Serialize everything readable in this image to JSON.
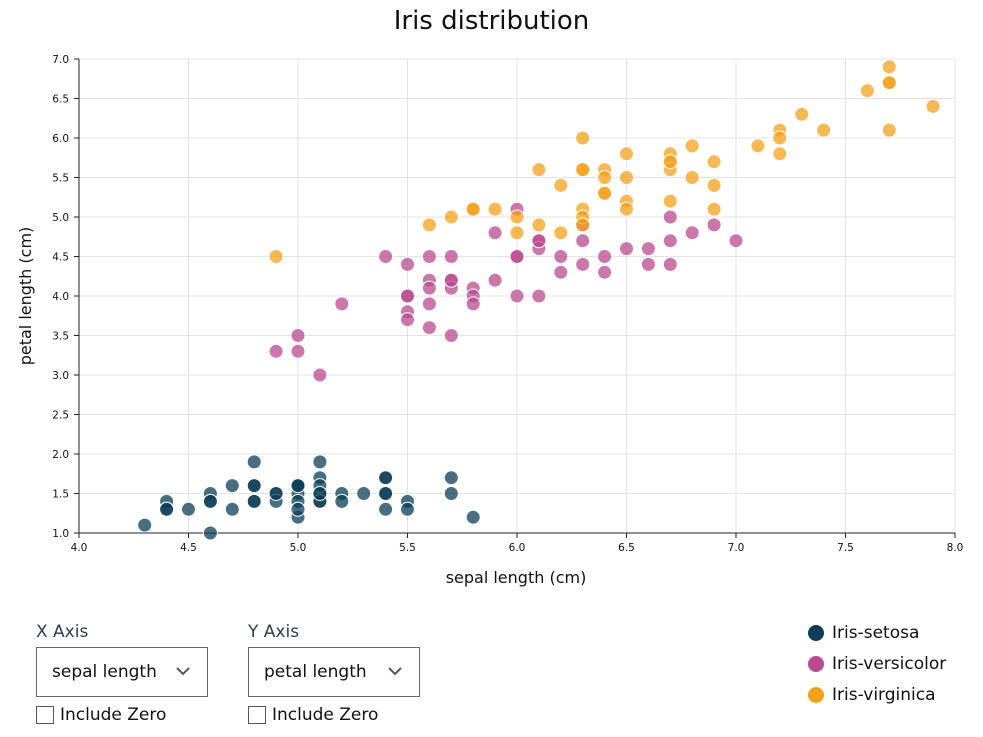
{
  "chart_data": {
    "type": "scatter",
    "title": "Iris distribution",
    "xlabel": "sepal length (cm)",
    "ylabel": "petal length (cm)",
    "xlim": [
      4.0,
      8.0
    ],
    "ylim": [
      1.0,
      7.0
    ],
    "x_ticks": [
      "4.0",
      "4.5",
      "5.0",
      "5.5",
      "6.0",
      "6.5",
      "7.0",
      "7.5",
      "8.0"
    ],
    "y_ticks": [
      "1.0",
      "1.5",
      "2.0",
      "2.5",
      "3.0",
      "3.5",
      "4.0",
      "4.5",
      "5.0",
      "5.5",
      "6.0",
      "6.5",
      "7.0"
    ],
    "grid": true,
    "legend_position": "bottom-right",
    "series": [
      {
        "name": "Iris-setosa",
        "color": "#0b3d57",
        "points": [
          [
            4.3,
            1.1
          ],
          [
            4.4,
            1.4
          ],
          [
            4.4,
            1.3
          ],
          [
            4.4,
            1.3
          ],
          [
            4.5,
            1.3
          ],
          [
            4.6,
            1.0
          ],
          [
            4.6,
            1.5
          ],
          [
            4.6,
            1.4
          ],
          [
            4.6,
            1.4
          ],
          [
            4.7,
            1.6
          ],
          [
            4.7,
            1.3
          ],
          [
            4.8,
            1.9
          ],
          [
            4.8,
            1.6
          ],
          [
            4.8,
            1.4
          ],
          [
            4.8,
            1.6
          ],
          [
            4.8,
            1.4
          ],
          [
            4.9,
            1.5
          ],
          [
            4.9,
            1.4
          ],
          [
            4.9,
            1.5
          ],
          [
            5.0,
            1.6
          ],
          [
            5.0,
            1.5
          ],
          [
            5.0,
            1.4
          ],
          [
            5.0,
            1.2
          ],
          [
            5.0,
            1.3
          ],
          [
            5.0,
            1.6
          ],
          [
            5.0,
            1.6
          ],
          [
            5.1,
            1.9
          ],
          [
            5.1,
            1.7
          ],
          [
            5.1,
            1.5
          ],
          [
            5.1,
            1.4
          ],
          [
            5.1,
            1.5
          ],
          [
            5.1,
            1.6
          ],
          [
            5.1,
            1.4
          ],
          [
            5.1,
            1.5
          ],
          [
            5.2,
            1.5
          ],
          [
            5.2,
            1.4
          ],
          [
            5.3,
            1.5
          ],
          [
            5.4,
            1.7
          ],
          [
            5.4,
            1.5
          ],
          [
            5.4,
            1.3
          ],
          [
            5.4,
            1.7
          ],
          [
            5.4,
            1.5
          ],
          [
            5.5,
            1.4
          ],
          [
            5.5,
            1.3
          ],
          [
            5.7,
            1.7
          ],
          [
            5.7,
            1.5
          ],
          [
            5.8,
            1.2
          ]
        ]
      },
      {
        "name": "Iris-versicolor",
        "color": "#b94a8f",
        "points": [
          [
            4.9,
            3.3
          ],
          [
            5.0,
            3.5
          ],
          [
            5.0,
            3.3
          ],
          [
            5.1,
            3.0
          ],
          [
            5.2,
            3.9
          ],
          [
            5.4,
            4.5
          ],
          [
            5.5,
            4.4
          ],
          [
            5.5,
            4.0
          ],
          [
            5.5,
            3.8
          ],
          [
            5.5,
            3.7
          ],
          [
            5.5,
            4.0
          ],
          [
            5.6,
            4.5
          ],
          [
            5.6,
            4.2
          ],
          [
            5.6,
            4.1
          ],
          [
            5.6,
            3.9
          ],
          [
            5.6,
            3.6
          ],
          [
            5.7,
            4.5
          ],
          [
            5.7,
            4.2
          ],
          [
            5.7,
            4.1
          ],
          [
            5.7,
            4.2
          ],
          [
            5.7,
            3.5
          ],
          [
            5.8,
            4.1
          ],
          [
            5.8,
            4.0
          ],
          [
            5.8,
            3.9
          ],
          [
            5.9,
            4.8
          ],
          [
            5.9,
            4.2
          ],
          [
            6.0,
            5.1
          ],
          [
            6.0,
            4.5
          ],
          [
            6.0,
            4.0
          ],
          [
            6.0,
            4.5
          ],
          [
            6.1,
            4.7
          ],
          [
            6.1,
            4.6
          ],
          [
            6.1,
            4.7
          ],
          [
            6.1,
            4.0
          ],
          [
            6.2,
            4.5
          ],
          [
            6.2,
            4.3
          ],
          [
            6.3,
            4.9
          ],
          [
            6.3,
            4.7
          ],
          [
            6.3,
            4.4
          ],
          [
            6.4,
            4.5
          ],
          [
            6.4,
            4.3
          ],
          [
            6.5,
            4.6
          ],
          [
            6.6,
            4.6
          ],
          [
            6.6,
            4.4
          ],
          [
            6.7,
            5.0
          ],
          [
            6.7,
            4.7
          ],
          [
            6.7,
            4.4
          ],
          [
            6.8,
            4.8
          ],
          [
            6.9,
            4.9
          ],
          [
            7.0,
            4.7
          ]
        ]
      },
      {
        "name": "Iris-virginica",
        "color": "#f5a01a",
        "points": [
          [
            4.9,
            4.5
          ],
          [
            5.6,
            4.9
          ],
          [
            5.7,
            5.0
          ],
          [
            5.8,
            5.1
          ],
          [
            5.8,
            5.1
          ],
          [
            5.9,
            5.1
          ],
          [
            6.0,
            5.0
          ],
          [
            6.0,
            4.8
          ],
          [
            6.1,
            5.6
          ],
          [
            6.1,
            4.9
          ],
          [
            6.2,
            5.4
          ],
          [
            6.2,
            4.8
          ],
          [
            6.3,
            6.0
          ],
          [
            6.3,
            5.6
          ],
          [
            6.3,
            5.1
          ],
          [
            6.3,
            5.0
          ],
          [
            6.3,
            4.9
          ],
          [
            6.3,
            5.6
          ],
          [
            6.4,
            5.6
          ],
          [
            6.4,
            5.5
          ],
          [
            6.4,
            5.3
          ],
          [
            6.4,
            5.3
          ],
          [
            6.5,
            5.8
          ],
          [
            6.5,
            5.5
          ],
          [
            6.5,
            5.2
          ],
          [
            6.5,
            5.1
          ],
          [
            6.7,
            5.8
          ],
          [
            6.7,
            5.7
          ],
          [
            6.7,
            5.6
          ],
          [
            6.7,
            5.2
          ],
          [
            6.7,
            5.7
          ],
          [
            6.8,
            5.9
          ],
          [
            6.8,
            5.5
          ],
          [
            6.9,
            5.7
          ],
          [
            6.9,
            5.4
          ],
          [
            6.9,
            5.1
          ],
          [
            7.1,
            5.9
          ],
          [
            7.2,
            6.1
          ],
          [
            7.2,
            6.0
          ],
          [
            7.2,
            5.8
          ],
          [
            7.3,
            6.3
          ],
          [
            7.4,
            6.1
          ],
          [
            7.6,
            6.6
          ],
          [
            7.7,
            6.9
          ],
          [
            7.7,
            6.7
          ],
          [
            7.7,
            6.7
          ],
          [
            7.7,
            6.1
          ],
          [
            7.9,
            6.4
          ]
        ]
      }
    ]
  },
  "controls": {
    "x_axis": {
      "label": "X Axis",
      "selected": "sepal length",
      "include_zero": "Include Zero"
    },
    "y_axis": {
      "label": "Y Axis",
      "selected": "petal length",
      "include_zero": "Include Zero"
    }
  },
  "legend": [
    {
      "label": "Iris-setosa",
      "color": "#0b3d57"
    },
    {
      "label": "Iris-versicolor",
      "color": "#b94a8f"
    },
    {
      "label": "Iris-virginica",
      "color": "#f5a01a"
    }
  ]
}
